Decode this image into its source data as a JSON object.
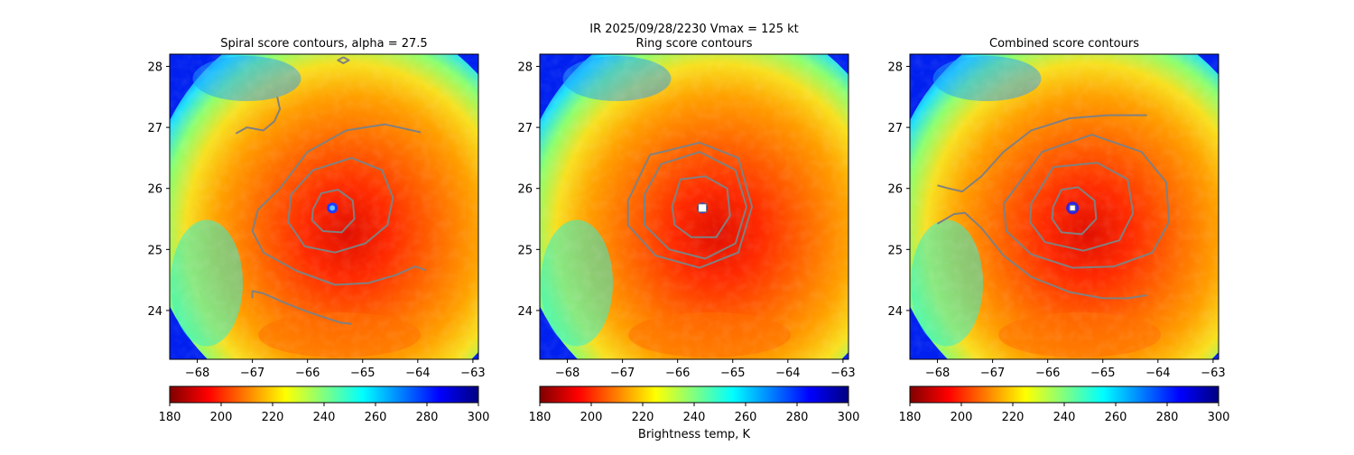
{
  "figure": {
    "suptitle_line1": "IR  2025/09/28/2230    Vmax = 125 kt",
    "colorbar_label": "Brightness temp, K"
  },
  "colors": {
    "contour": "#808080",
    "jet_stops": [
      "#800000",
      "#ff0000",
      "#ff8000",
      "#ffff00",
      "#80ff80",
      "#00ffff",
      "#0080ff",
      "#0000ff",
      "#000080"
    ],
    "eye_center": "#1a3cff",
    "marker_fill": "#ffffff",
    "combined_marker_edge": "#3b1fd1"
  },
  "chart_data": [
    {
      "type": "heatmap",
      "title": "Spiral score contours, alpha = 27.5",
      "x_ticks": [
        -68,
        -67,
        -66,
        -65,
        -64,
        -63
      ],
      "y_ticks": [
        24,
        25,
        26,
        27,
        28
      ],
      "xlim": [
        -68.5,
        -62.9
      ],
      "ylim": [
        23.2,
        28.2
      ],
      "eye_center": {
        "lon": -65.55,
        "lat": 25.68
      },
      "marker": "none",
      "colorbar": {
        "ticks": [
          180,
          200,
          220,
          240,
          260,
          280,
          300
        ],
        "range": [
          180,
          300
        ]
      },
      "contours": [
        [
          [
            -65.9,
            25.66
          ],
          [
            -65.75,
            25.92
          ],
          [
            -65.45,
            25.98
          ],
          [
            -65.18,
            25.8
          ],
          [
            -65.15,
            25.5
          ],
          [
            -65.38,
            25.28
          ],
          [
            -65.72,
            25.3
          ],
          [
            -65.92,
            25.48
          ],
          [
            -65.9,
            25.66
          ]
        ],
        [
          [
            -66.3,
            25.9
          ],
          [
            -65.9,
            26.3
          ],
          [
            -65.2,
            26.5
          ],
          [
            -64.65,
            26.3
          ],
          [
            -64.45,
            25.85
          ],
          [
            -64.55,
            25.4
          ],
          [
            -64.95,
            25.1
          ],
          [
            -65.5,
            24.95
          ],
          [
            -66.05,
            25.05
          ],
          [
            -66.35,
            25.45
          ],
          [
            -66.3,
            25.9
          ]
        ],
        [
          [
            -66.5,
            26.0
          ],
          [
            -66.0,
            26.6
          ],
          [
            -65.3,
            26.95
          ],
          [
            -64.6,
            27.05
          ],
          [
            -63.95,
            26.92
          ]
        ],
        [
          [
            -66.5,
            26.0
          ],
          [
            -66.9,
            25.65
          ],
          [
            -67.0,
            25.3
          ],
          [
            -66.8,
            24.95
          ],
          [
            -66.2,
            24.65
          ],
          [
            -65.5,
            24.42
          ],
          [
            -64.9,
            24.45
          ],
          [
            -64.4,
            24.58
          ],
          [
            -64.05,
            24.72
          ],
          [
            -63.85,
            24.66
          ]
        ],
        [
          [
            -67.0,
            24.2
          ],
          [
            -67.0,
            24.32
          ],
          [
            -66.8,
            24.28
          ],
          [
            -66.4,
            24.12
          ],
          [
            -66.0,
            23.98
          ],
          [
            -65.6,
            23.86
          ],
          [
            -65.4,
            23.8
          ],
          [
            -65.2,
            23.78
          ]
        ],
        [
          [
            -67.3,
            26.9
          ],
          [
            -67.1,
            27.0
          ],
          [
            -66.8,
            26.95
          ],
          [
            -66.6,
            27.1
          ],
          [
            -66.5,
            27.3
          ],
          [
            -66.55,
            27.5
          ]
        ],
        [
          [
            -65.35,
            28.15
          ],
          [
            -65.25,
            28.1
          ],
          [
            -65.35,
            28.05
          ],
          [
            -65.45,
            28.1
          ],
          [
            -65.35,
            28.15
          ]
        ]
      ]
    },
    {
      "type": "heatmap",
      "title": "Ring score contours",
      "x_ticks": [
        -68,
        -67,
        -66,
        -65,
        -64,
        -63
      ],
      "y_ticks": [
        24,
        25,
        26,
        27,
        28
      ],
      "xlim": [
        -68.5,
        -62.9
      ],
      "ylim": [
        23.2,
        28.2
      ],
      "eye_center": {
        "lon": -65.55,
        "lat": 25.68
      },
      "marker": "square",
      "colorbar": {
        "ticks": [
          180,
          200,
          220,
          240,
          260,
          280,
          300
        ],
        "range": [
          180,
          300
        ]
      },
      "contours": [
        [
          [
            -66.1,
            25.7
          ],
          [
            -65.95,
            26.15
          ],
          [
            -65.5,
            26.2
          ],
          [
            -65.1,
            26.0
          ],
          [
            -65.05,
            25.55
          ],
          [
            -65.3,
            25.2
          ],
          [
            -65.75,
            25.2
          ],
          [
            -66.05,
            25.4
          ],
          [
            -66.1,
            25.7
          ]
        ],
        [
          [
            -66.6,
            25.9
          ],
          [
            -66.3,
            26.4
          ],
          [
            -65.6,
            26.6
          ],
          [
            -64.95,
            26.3
          ],
          [
            -64.75,
            25.7
          ],
          [
            -64.95,
            25.1
          ],
          [
            -65.5,
            24.85
          ],
          [
            -66.15,
            25.0
          ],
          [
            -66.6,
            25.4
          ],
          [
            -66.6,
            25.9
          ]
        ],
        [
          [
            -66.9,
            25.8
          ],
          [
            -66.5,
            26.55
          ],
          [
            -65.6,
            26.75
          ],
          [
            -64.9,
            26.5
          ],
          [
            -64.65,
            25.7
          ],
          [
            -64.9,
            24.95
          ],
          [
            -65.6,
            24.7
          ],
          [
            -66.4,
            24.9
          ],
          [
            -66.9,
            25.4
          ],
          [
            -66.9,
            25.8
          ]
        ]
      ]
    },
    {
      "type": "heatmap",
      "title": "Combined score contours",
      "x_ticks": [
        -68,
        -67,
        -66,
        -65,
        -64,
        -63
      ],
      "y_ticks": [
        24,
        25,
        26,
        27,
        28
      ],
      "xlim": [
        -68.5,
        -62.9
      ],
      "ylim": [
        23.2,
        28.2
      ],
      "eye_center": {
        "lon": -65.55,
        "lat": 25.68
      },
      "marker": "circle",
      "colorbar": {
        "ticks": [
          180,
          200,
          220,
          240,
          260,
          280,
          300
        ],
        "range": [
          180,
          300
        ]
      },
      "contours": [
        [
          [
            -65.9,
            25.7
          ],
          [
            -65.75,
            25.98
          ],
          [
            -65.45,
            26.02
          ],
          [
            -65.15,
            25.8
          ],
          [
            -65.12,
            25.5
          ],
          [
            -65.38,
            25.25
          ],
          [
            -65.75,
            25.28
          ],
          [
            -65.92,
            25.5
          ],
          [
            -65.9,
            25.7
          ]
        ],
        [
          [
            -66.3,
            25.75
          ],
          [
            -65.9,
            26.35
          ],
          [
            -65.1,
            26.42
          ],
          [
            -64.55,
            26.15
          ],
          [
            -64.45,
            25.6
          ],
          [
            -64.7,
            25.15
          ],
          [
            -65.35,
            24.98
          ],
          [
            -66.05,
            25.12
          ],
          [
            -66.32,
            25.45
          ],
          [
            -66.3,
            25.75
          ]
        ],
        [
          [
            -66.8,
            25.75
          ],
          [
            -66.1,
            26.6
          ],
          [
            -65.2,
            26.88
          ],
          [
            -64.3,
            26.6
          ],
          [
            -63.85,
            26.1
          ],
          [
            -63.8,
            25.45
          ],
          [
            -64.1,
            24.95
          ],
          [
            -64.8,
            24.72
          ],
          [
            -65.55,
            24.7
          ],
          [
            -66.3,
            24.92
          ],
          [
            -66.75,
            25.3
          ],
          [
            -66.8,
            25.75
          ]
        ],
        [
          [
            -68.0,
            26.05
          ],
          [
            -67.8,
            26.0
          ],
          [
            -67.55,
            25.95
          ],
          [
            -67.2,
            26.2
          ],
          [
            -66.8,
            26.6
          ],
          [
            -66.3,
            26.95
          ],
          [
            -65.6,
            27.15
          ],
          [
            -64.9,
            27.2
          ],
          [
            -64.2,
            27.2
          ]
        ],
        [
          [
            -68.0,
            25.42
          ],
          [
            -67.7,
            25.58
          ],
          [
            -67.5,
            25.6
          ],
          [
            -67.2,
            25.35
          ],
          [
            -66.8,
            24.9
          ],
          [
            -66.3,
            24.55
          ],
          [
            -65.6,
            24.3
          ],
          [
            -65.0,
            24.2
          ],
          [
            -64.55,
            24.2
          ],
          [
            -64.2,
            24.25
          ]
        ]
      ]
    }
  ]
}
